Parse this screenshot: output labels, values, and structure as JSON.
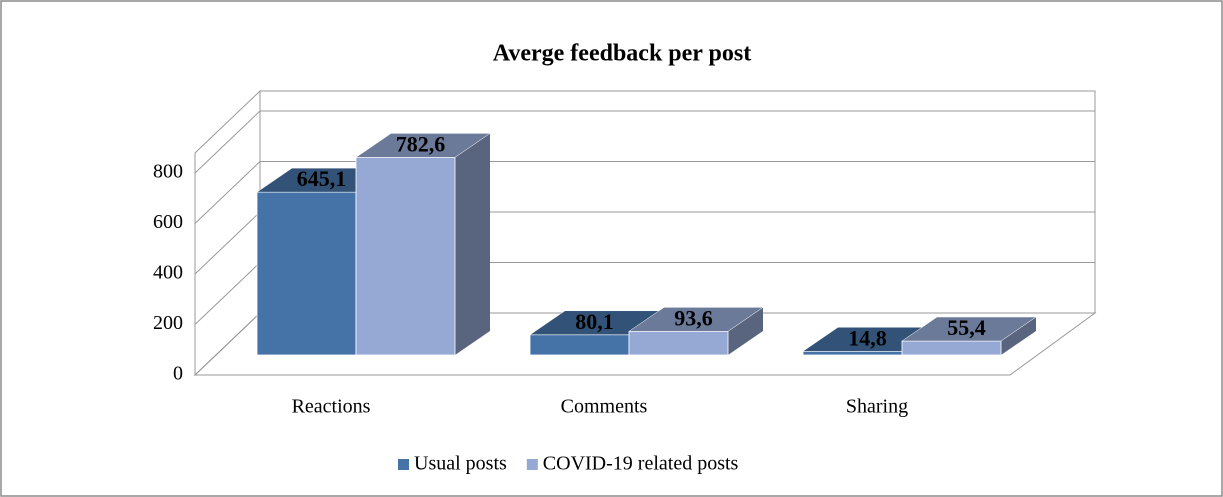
{
  "chart_data": {
    "type": "bar3d",
    "title": "Averge feedback per post",
    "categories": [
      "Reactions",
      "Comments",
      "Sharing"
    ],
    "series": [
      {
        "name": "Usual posts",
        "color": "#4572a7",
        "values": [
          645.1,
          80.1,
          14.8
        ],
        "value_labels": [
          "645,1",
          "80,1",
          "14,8"
        ]
      },
      {
        "name": "COVID-19 related posts",
        "color": "#95a9d4",
        "values": [
          782.6,
          93.6,
          55.4
        ],
        "value_labels": [
          "782,6",
          "93,6",
          "55,4"
        ]
      }
    ],
    "ylim": [
      0,
      800
    ],
    "yticks": [
      0,
      200,
      400,
      600,
      800
    ],
    "grid": true,
    "legend": "bottom"
  }
}
